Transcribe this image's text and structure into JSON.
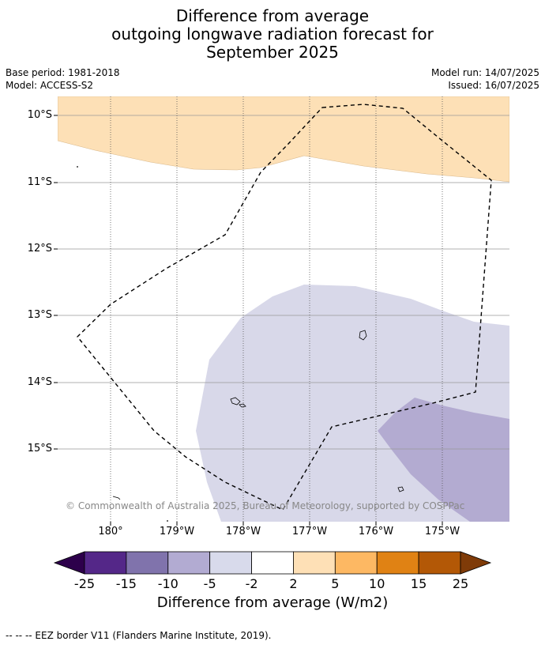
{
  "title": {
    "line1": "Difference from average",
    "line2": "outgoing longwave radiation forecast for",
    "line3": "September 2025"
  },
  "meta": {
    "base_period": "Base period: 1981-2018",
    "model": "Model: ACCESS-S2",
    "model_run": "Model run: 14/07/2025",
    "issued": "Issued: 16/07/2025"
  },
  "map": {
    "lat_labels": [
      "10°S",
      "11°S",
      "12°S",
      "13°S",
      "14°S",
      "15°S"
    ],
    "lon_labels": [
      "180°",
      "179°W",
      "178°W",
      "177°W",
      "176°W",
      "175°W"
    ],
    "credit": "© Commonwealth of Australia 2025, Bureau of Meteorology, supported by COSPPac",
    "colors": {
      "positive_2_5": "#fde0b6",
      "negative_2_5": "#d8d8e9",
      "negative_5_10": "#b3abd1",
      "eez_border": "#000000"
    }
  },
  "colorbar": {
    "ticks": [
      "-25",
      "-15",
      "-10",
      "-5",
      "-2",
      "2",
      "5",
      "10",
      "15",
      "25"
    ],
    "colors": [
      "#2d004b",
      "#542788",
      "#8073ac",
      "#b2abd2",
      "#d8daeb",
      "#ffffff",
      "#fee0b6",
      "#fdb863",
      "#e08214",
      "#b35806",
      "#7f3b08"
    ],
    "label": "Difference from average (W/m2)"
  },
  "footer": {
    "legend_text": "--  --  -- EEZ border V11 (Flanders Marine Institute, 2019)."
  }
}
